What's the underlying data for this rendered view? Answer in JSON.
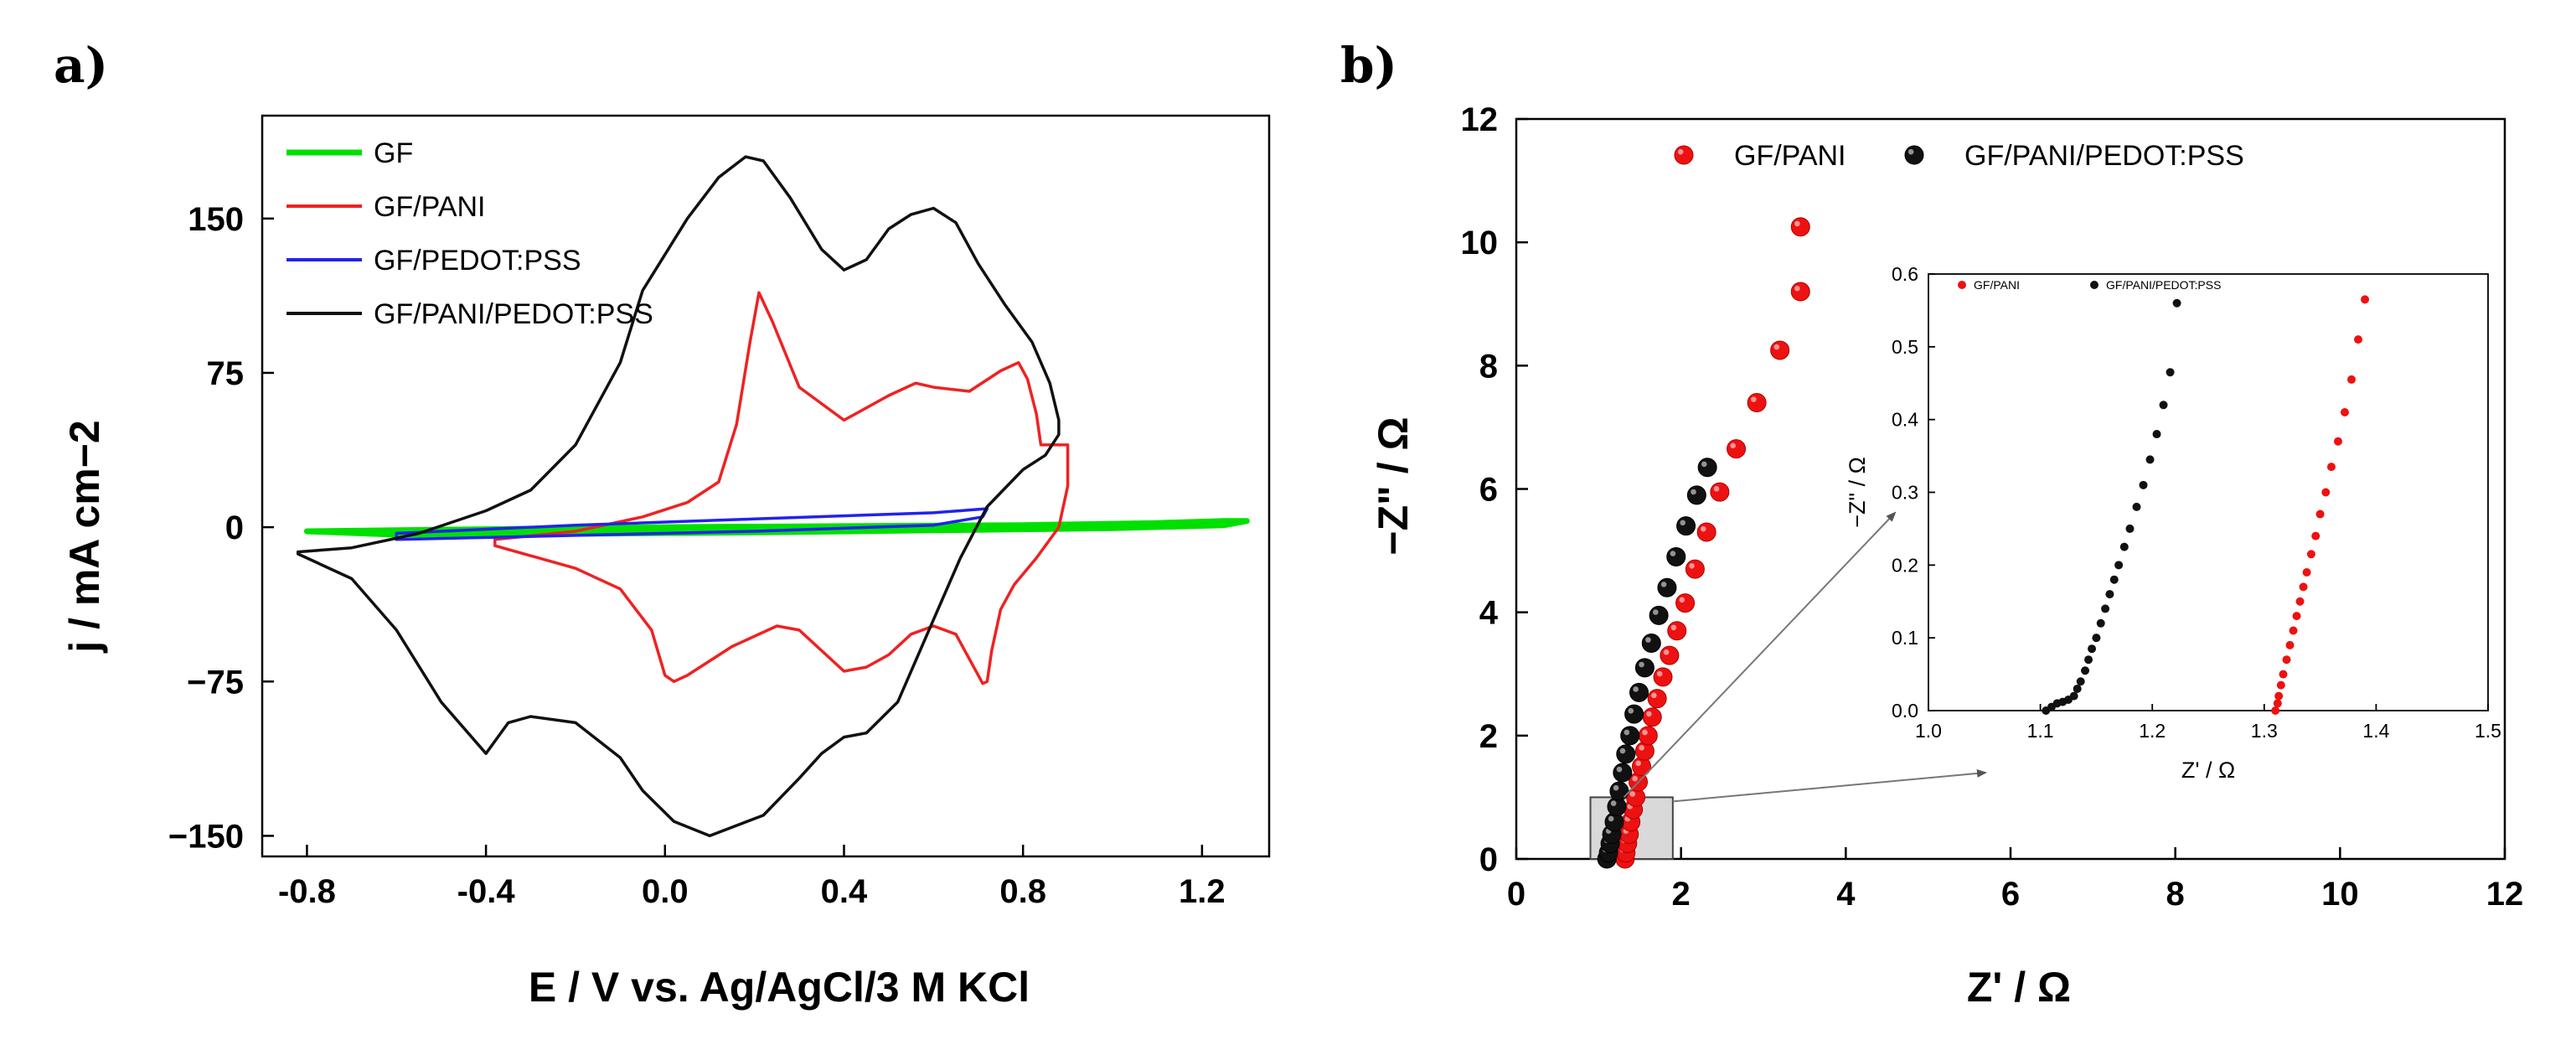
{
  "chart_data": [
    {
      "panel_label": "a)",
      "type": "line",
      "xlabel": "E / V vs. Ag/AgCl/3 M KCl",
      "ylabel": "j / mA cm−2",
      "xlim": [
        -0.9,
        1.35
      ],
      "ylim": [
        -160,
        200
      ],
      "xticks": [
        "-0.8",
        "-0.4",
        "0.0",
        "0.4",
        "0.8",
        "1.2"
      ],
      "yticks": [
        "150",
        "75",
        "0",
        "−75",
        "−150"
      ],
      "legend_position": "top-left",
      "grid": false,
      "series": [
        {
          "name": "GF",
          "color": "#00e000",
          "x": [
            -0.8,
            -0.4,
            0.0,
            0.4,
            0.8,
            1.1,
            1.25,
            1.3,
            1.25,
            1.0,
            0.6,
            0.2,
            -0.2,
            -0.6,
            -0.8
          ],
          "y": [
            -2,
            -1,
            0,
            0.5,
            1,
            2,
            3,
            3,
            1,
            -0.5,
            -1.5,
            -2.5,
            -3.2,
            -3.6,
            -2
          ]
        },
        {
          "name": "GF/PANI",
          "color": "#ee2222",
          "x": [
            -0.38,
            -0.2,
            -0.05,
            0.05,
            0.12,
            0.16,
            0.19,
            0.21,
            0.24,
            0.3,
            0.4,
            0.5,
            0.56,
            0.6,
            0.68,
            0.75,
            0.79,
            0.81,
            0.83,
            0.84,
            0.9,
            0.9,
            0.88,
            0.83,
            0.78,
            0.75,
            0.73,
            0.72,
            0.71,
            0.7,
            0.65,
            0.6,
            0.55,
            0.5,
            0.45,
            0.4,
            0.3,
            0.25,
            0.15,
            0.05,
            0.02,
            0.0,
            -0.03,
            -0.1,
            -0.2,
            -0.38
          ],
          "y": [
            -6,
            -2,
            5,
            12,
            22,
            50,
            90,
            114,
            100,
            68,
            52,
            64,
            70,
            68,
            66,
            76,
            80,
            72,
            55,
            40,
            40,
            20,
            0,
            -15,
            -28,
            -40,
            -60,
            -75,
            -76,
            -72,
            -52,
            -48,
            -52,
            -62,
            -68,
            -70,
            -50,
            -48,
            -58,
            -72,
            -75,
            -72,
            -50,
            -30,
            -20,
            -9
          ]
        },
        {
          "name": "GF/PEDOT:PSS",
          "color": "#2222ee",
          "x": [
            -0.6,
            -0.2,
            0.2,
            0.6,
            0.72,
            0.71,
            0.6,
            0.2,
            -0.2,
            -0.6,
            -0.6
          ],
          "y": [
            -3,
            1,
            4,
            7,
            9,
            5,
            1,
            -2,
            -4,
            -6,
            -3
          ]
        },
        {
          "name": "GF/PANI/PEDOT:PSS",
          "color": "#111111",
          "x": [
            -0.82,
            -0.7,
            -0.55,
            -0.4,
            -0.3,
            -0.2,
            -0.1,
            -0.05,
            0.05,
            0.12,
            0.18,
            0.22,
            0.28,
            0.35,
            0.4,
            0.45,
            0.5,
            0.55,
            0.6,
            0.65,
            0.7,
            0.76,
            0.82,
            0.86,
            0.88,
            0.88,
            0.85,
            0.8,
            0.72,
            0.66,
            0.6,
            0.52,
            0.45,
            0.4,
            0.35,
            0.3,
            0.22,
            0.1,
            0.02,
            -0.05,
            -0.1,
            -0.2,
            -0.3,
            -0.35,
            -0.4,
            -0.5,
            -0.6,
            -0.7,
            -0.82
          ],
          "y": [
            -12,
            -10,
            -3,
            8,
            18,
            40,
            80,
            115,
            150,
            170,
            180,
            178,
            160,
            135,
            125,
            130,
            145,
            152,
            155,
            148,
            128,
            108,
            90,
            70,
            52,
            45,
            35,
            28,
            10,
            -15,
            -45,
            -85,
            -100,
            -102,
            -110,
            -122,
            -140,
            -150,
            -143,
            -128,
            -112,
            -95,
            -92,
            -95,
            -110,
            -85,
            -50,
            -25,
            -13
          ]
        }
      ]
    },
    {
      "panel_label": "b)",
      "type": "scatter",
      "xlabel": "Z' / Ω",
      "ylabel": "−Z\" / Ω",
      "xlim": [
        0,
        12
      ],
      "ylim": [
        0,
        12
      ],
      "xticks": [
        "0",
        "2",
        "4",
        "6",
        "8",
        "10",
        "12"
      ],
      "yticks": [
        "0",
        "2",
        "4",
        "6",
        "8",
        "10",
        "12"
      ],
      "legend_position": "top",
      "grid": false,
      "series": [
        {
          "name": "GF/PANI",
          "color": "#ee1111",
          "x": [
            1.32,
            1.33,
            1.35,
            1.37,
            1.39,
            1.42,
            1.45,
            1.48,
            1.52,
            1.56,
            1.6,
            1.65,
            1.71,
            1.78,
            1.86,
            1.95,
            2.05,
            2.17,
            2.31,
            2.47,
            2.67,
            2.92,
            3.2,
            3.45
          ],
          "y": [
            0.0,
            0.1,
            0.25,
            0.4,
            0.6,
            0.8,
            1.0,
            1.25,
            1.5,
            1.75,
            2.0,
            2.3,
            2.6,
            2.95,
            3.3,
            3.7,
            4.15,
            4.7,
            5.3,
            5.95,
            6.65,
            7.4,
            8.25,
            9.2
          ]
        },
        {
          "name": "GF/PANI/PEDOT:PSS",
          "color": "#111111",
          "x": [
            1.1,
            1.12,
            1.14,
            1.16,
            1.19,
            1.22,
            1.25,
            1.29,
            1.33,
            1.38,
            1.43,
            1.49,
            1.56,
            1.64,
            1.73,
            1.83,
            1.94,
            2.06,
            2.19,
            2.32
          ],
          "y": [
            0.0,
            0.1,
            0.25,
            0.4,
            0.6,
            0.85,
            1.1,
            1.4,
            1.7,
            2.0,
            2.35,
            2.7,
            3.1,
            3.5,
            3.95,
            4.4,
            4.9,
            5.4,
            5.9,
            6.35
          ]
        }
      ],
      "extra_point_gf_pani": {
        "x": 3.45,
        "y": 10.25
      },
      "zoom_box": {
        "x": [
          0.9,
          1.9
        ],
        "y": [
          0,
          1
        ]
      },
      "inset": {
        "type": "scatter",
        "xlabel": "Z' / Ω",
        "ylabel": "−Z\" / Ω",
        "xlim": [
          1.0,
          1.5
        ],
        "ylim": [
          0.0,
          0.6
        ],
        "xticks": [
          "1.0",
          "1.1",
          "1.2",
          "1.3",
          "1.4",
          "1.5"
        ],
        "yticks": [
          "0.0",
          "0.1",
          "0.2",
          "0.3",
          "0.4",
          "0.5",
          "0.6"
        ],
        "series": [
          {
            "name": "GF/PANI",
            "color": "#ee1111",
            "x": [
              1.31,
              1.312,
              1.313,
              1.315,
              1.317,
              1.32,
              1.323,
              1.326,
              1.329,
              1.332,
              1.335,
              1.338,
              1.342,
              1.346,
              1.35,
              1.355,
              1.36,
              1.366,
              1.372,
              1.378,
              1.384,
              1.39
            ],
            "y": [
              0.0,
              0.01,
              0.02,
              0.035,
              0.05,
              0.07,
              0.09,
              0.11,
              0.13,
              0.15,
              0.17,
              0.19,
              0.215,
              0.24,
              0.27,
              0.3,
              0.335,
              0.37,
              0.41,
              0.455,
              0.51,
              0.565
            ]
          },
          {
            "name": "GF/PANI/PEDOT:PSS",
            "color": "#111111",
            "x": [
              1.105,
              1.11,
              1.115,
              1.12,
              1.125,
              1.13,
              1.133,
              1.136,
              1.14,
              1.143,
              1.146,
              1.15,
              1.154,
              1.158,
              1.162,
              1.166,
              1.17,
              1.175,
              1.18,
              1.186,
              1.192,
              1.198,
              1.204,
              1.21,
              1.216,
              1.222
            ],
            "y": [
              0.0,
              0.005,
              0.01,
              0.012,
              0.015,
              0.02,
              0.03,
              0.04,
              0.055,
              0.07,
              0.085,
              0.1,
              0.12,
              0.14,
              0.16,
              0.18,
              0.2,
              0.225,
              0.25,
              0.28,
              0.31,
              0.345,
              0.38,
              0.42,
              0.465,
              0.56
            ]
          }
        ]
      }
    }
  ]
}
